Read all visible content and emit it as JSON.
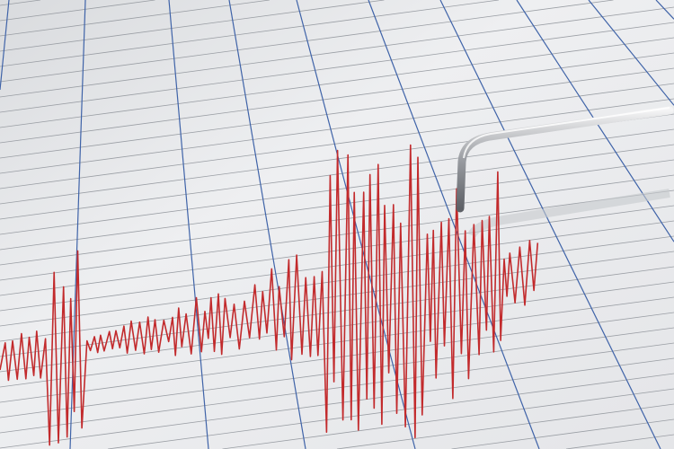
{
  "colors": {
    "paper": "#ecedef",
    "grid_horizontal": "#9a9ea4",
    "grid_vertical": "#3f63a8",
    "trace": "#c22a2c",
    "stylus": "#8d9096"
  }
}
